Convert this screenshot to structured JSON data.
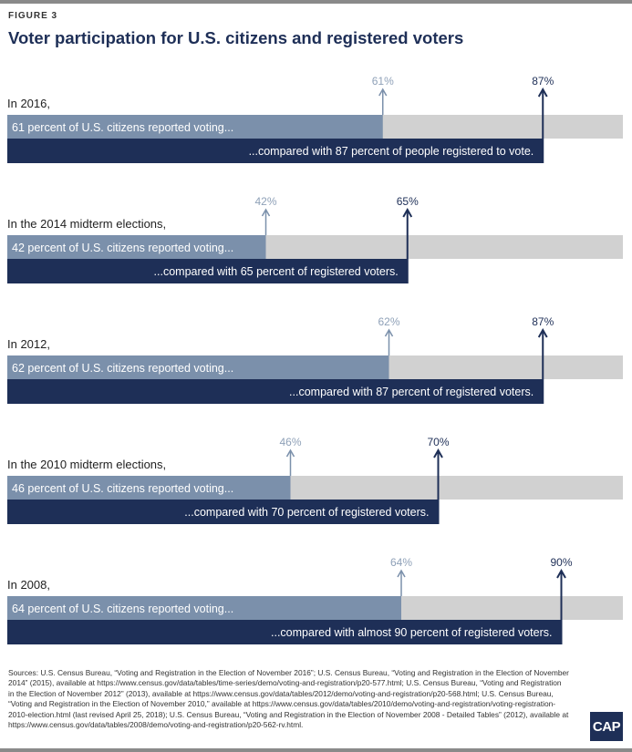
{
  "figure_label": "FIGURE 3",
  "title": "Voter participation for U.S. citizens and registered voters",
  "colors": {
    "citizen_bar": "#7b90ab",
    "registered_bar": "#1e2f57",
    "track": "#d1d1d1",
    "citizen_label": "#8fa1b8",
    "registered_label": "#1e2f57"
  },
  "chart_data": {
    "type": "bar",
    "xlim": [
      0,
      100
    ],
    "unit": "percent",
    "series": [
      {
        "name": "U.S. citizens reported voting",
        "values": [
          61,
          42,
          62,
          46,
          64
        ]
      },
      {
        "name": "Registered voters",
        "values": [
          87,
          65,
          87,
          70,
          90
        ]
      }
    ],
    "groups": [
      {
        "heading": "In 2016,",
        "citizen_value": 61,
        "citizen_label": "61%",
        "citizen_text": "61 percent of U.S. citizens reported voting...",
        "registered_value": 87,
        "registered_label": "87%",
        "registered_text": "...compared with 87 percent of people registered to vote."
      },
      {
        "heading": "In the 2014 midterm elections,",
        "citizen_value": 42,
        "citizen_label": "42%",
        "citizen_text": "42 percent of U.S. citizens reported voting...",
        "registered_value": 65,
        "registered_label": "65%",
        "registered_text": "...compared with 65 percent of registered voters."
      },
      {
        "heading": "In 2012,",
        "citizen_value": 62,
        "citizen_label": "62%",
        "citizen_text": "62 percent of U.S. citizens reported voting...",
        "registered_value": 87,
        "registered_label": "87%",
        "registered_text": "...compared with 87 percent of registered voters."
      },
      {
        "heading": "In the 2010 midterm elections,",
        "citizen_value": 46,
        "citizen_label": "46%",
        "citizen_text": "46 percent of U.S. citizens reported voting...",
        "registered_value": 70,
        "registered_label": "70%",
        "registered_text": "...compared with 70 percent of registered voters."
      },
      {
        "heading": "In 2008,",
        "citizen_value": 64,
        "citizen_label": "64%",
        "citizen_text": "64 percent of U.S. citizens reported voting...",
        "registered_value": 90,
        "registered_label": "90%",
        "registered_text": "...compared with almost 90 percent of registered voters."
      }
    ]
  },
  "sources": "Sources: U.S. Census Bureau, “Voting and Registration in the Election of November 2016”; U.S. Census Bureau, “Voting and Registration in the Election of November 2014” (2015), available at https://www.census.gov/data/tables/time-series/demo/voting-and-registration/p20-577.html; U.S. Census Bureau, “Voting and Registration in the Election of November 2012” (2013), available at https://www.census.gov/data/tables/2012/demo/voting-and-registration/p20-568.html; U.S. Census Bureau, “Voting and Registration in the Election of November 2010,” available at https://www.census.gov/data/tables/2010/demo/voting-and-registration/voting-registration-2010-election.html (last revised April 25, 2018); U.S. Census Bureau, “Voting and Registration in the Election of November 2008 - Detailed Tables” (2012), available at https://www.census.gov/data/tables/2008/demo/voting-and-registration/p20-562-rv.html.",
  "logo_text": "CAP"
}
